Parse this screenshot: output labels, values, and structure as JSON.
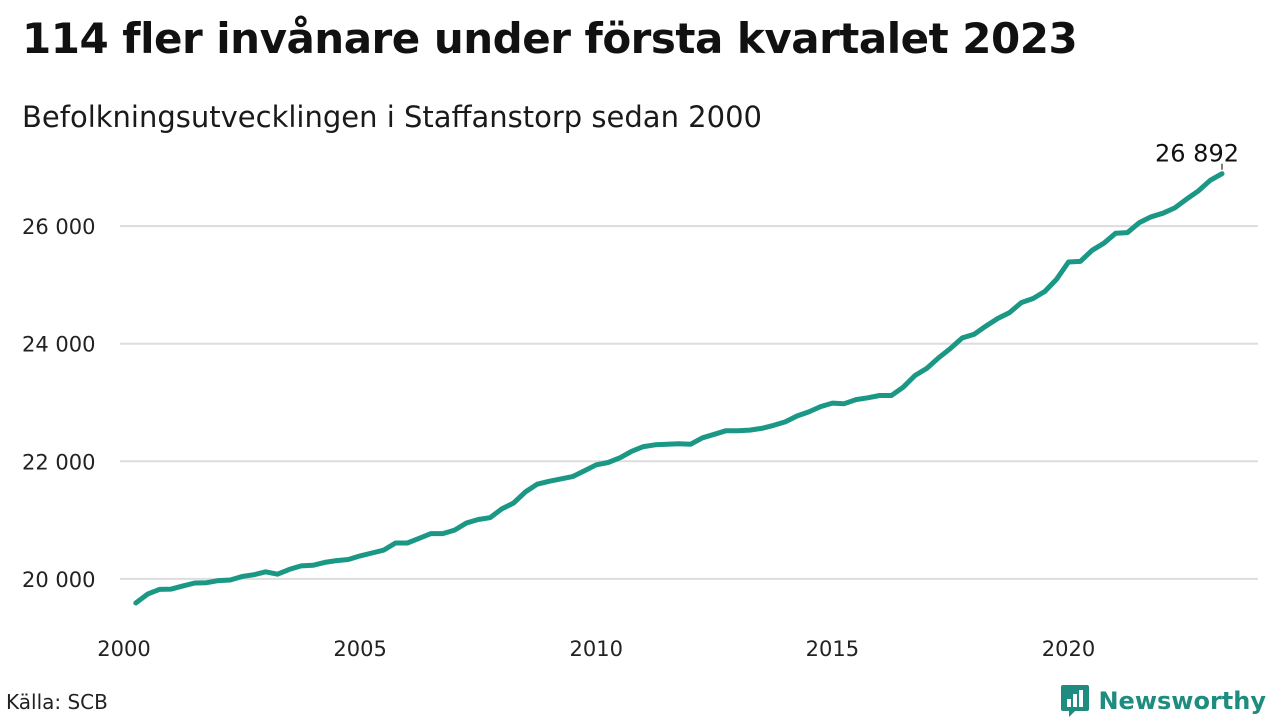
{
  "title": "114 fler invånare under första kvartalet 2023",
  "subtitle": "Befolkningsutvecklingen i Staffanstorp sedan 2000",
  "source": "Källa: SCB",
  "brand": {
    "name": "Newsworthy",
    "icon": "bar-chart-icon",
    "color": "#1e8c7e"
  },
  "chart_data": {
    "type": "line",
    "title": "114 fler invånare under första kvartalet 2023",
    "subtitle": "Befolkningsutvecklingen i Staffanstorp sedan 2000",
    "xlabel": "",
    "ylabel": "",
    "xlim": [
      2000,
      2023.25
    ],
    "ylim": [
      19300,
      27500
    ],
    "grid": true,
    "line_color": "#1a9885",
    "yticks": [
      {
        "value": 20000,
        "label": "20 000"
      },
      {
        "value": 22000,
        "label": "22 000"
      },
      {
        "value": 24000,
        "label": "24 000"
      },
      {
        "value": 26000,
        "label": "26 000"
      }
    ],
    "xticks": [
      {
        "value": 2000,
        "label": "2000"
      },
      {
        "value": 2005,
        "label": "2005"
      },
      {
        "value": 2010,
        "label": "2010"
      },
      {
        "value": 2015,
        "label": "2015"
      },
      {
        "value": 2020,
        "label": "2020"
      }
    ],
    "annotation": {
      "label": "26 892",
      "x": 2023.25,
      "y": 26892
    },
    "x": [
      2000.25,
      2000.5,
      2000.75,
      2001,
      2001.25,
      2001.5,
      2001.75,
      2002,
      2002.25,
      2002.5,
      2002.75,
      2003,
      2003.25,
      2003.5,
      2003.75,
      2004,
      2004.25,
      2004.5,
      2004.75,
      2005,
      2005.25,
      2005.5,
      2005.75,
      2006,
      2006.25,
      2006.5,
      2006.75,
      2007,
      2007.25,
      2007.5,
      2007.75,
      2008,
      2008.25,
      2008.5,
      2008.75,
      2009,
      2009.25,
      2009.5,
      2009.75,
      2010,
      2010.25,
      2010.5,
      2010.75,
      2011,
      2011.25,
      2011.5,
      2011.75,
      2012,
      2012.25,
      2012.5,
      2012.75,
      2013,
      2013.25,
      2013.5,
      2013.75,
      2014,
      2014.25,
      2014.5,
      2014.75,
      2015,
      2015.25,
      2015.5,
      2015.75,
      2016,
      2016.25,
      2016.5,
      2016.75,
      2017,
      2017.25,
      2017.5,
      2017.75,
      2018,
      2018.25,
      2018.5,
      2018.75,
      2019,
      2019.25,
      2019.5,
      2019.75,
      2020,
      2020.25,
      2020.5,
      2020.75,
      2021,
      2021.25,
      2021.5,
      2021.75,
      2022,
      2022.25,
      2022.5,
      2022.75,
      2023,
      2023.25
    ],
    "values": [
      19590,
      19740,
      19820,
      19825,
      19880,
      19930,
      19935,
      19970,
      19980,
      20040,
      20070,
      20120,
      20080,
      20160,
      20220,
      20230,
      20280,
      20310,
      20330,
      20390,
      20440,
      20490,
      20610,
      20610,
      20690,
      20770,
      20770,
      20830,
      20950,
      21010,
      21040,
      21190,
      21290,
      21480,
      21610,
      21660,
      21700,
      21740,
      21840,
      21940,
      21980,
      22060,
      22170,
      22250,
      22280,
      22290,
      22300,
      22290,
      22400,
      22460,
      22520,
      22520,
      22530,
      22560,
      22610,
      22670,
      22770,
      22840,
      22930,
      22990,
      22980,
      23050,
      23080,
      23120,
      23120,
      23260,
      23460,
      23580,
      23760,
      23920,
      24100,
      24160,
      24300,
      24430,
      24530,
      24700,
      24770,
      24890,
      25100,
      25390,
      25400,
      25590,
      25710,
      25880,
      25890,
      26060,
      26160,
      26220,
      26310,
      26460,
      26600,
      26780,
      26892
    ]
  }
}
